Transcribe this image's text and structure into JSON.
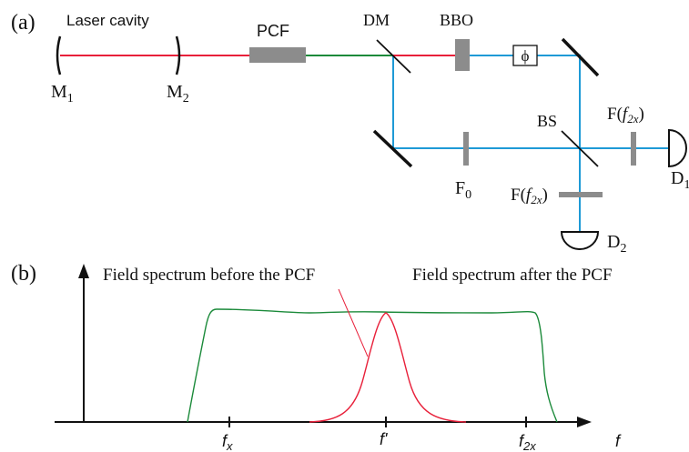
{
  "panel_a": {
    "label": "(a)",
    "laser_cavity": "Laser cavity",
    "m1": {
      "main": "M",
      "sub": "1"
    },
    "m2": {
      "main": "M",
      "sub": "2"
    },
    "pcf": "PCF",
    "dm": "DM",
    "bbo": "BBO",
    "phase": "ϕ",
    "bs": "BS",
    "f0": {
      "main": "F",
      "sub": "0"
    },
    "f2x_right": {
      "pre": "F(",
      "f": "f",
      "sub": "2x",
      "post": ")"
    },
    "f2x_bottom": {
      "pre": "F(",
      "f": "f",
      "sub": "2x",
      "post": ")"
    },
    "d1": {
      "main": "D",
      "sub": "1"
    },
    "d2": {
      "main": "D",
      "sub": "2"
    }
  },
  "panel_b": {
    "label": "(b)",
    "before_label": "Field spectrum before the PCF",
    "after_label": "Field spectrum after the PCF",
    "axis_f": "f",
    "tick_fx": {
      "main": "f",
      "sub": "x"
    },
    "tick_fprime": "f'",
    "tick_f2x": {
      "main": "f",
      "sub": "2x"
    }
  },
  "colors": {
    "red_beam": "#e8203a",
    "green_beam": "#1b8a3a",
    "blue_beam": "#1e9ad6",
    "component_gray": "#8c8c8c",
    "before_spectrum": "#e8203a",
    "after_spectrum": "#1b8a3a"
  }
}
